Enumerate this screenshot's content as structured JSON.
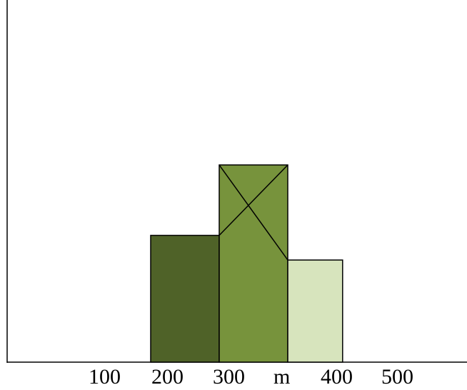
{
  "chart_data": {
    "type": "bar",
    "title": "",
    "xlabel": "",
    "ylabel": "",
    "x_tick_labels": [
      "100",
      "200",
      "300",
      "m",
      "400",
      "500"
    ],
    "bars": [
      {
        "x_start": 200,
        "x_end": 300,
        "value": 180,
        "color": "#4f6228"
      },
      {
        "x_start": 300,
        "x_end": 400,
        "value": 280,
        "color": "#77933c"
      },
      {
        "x_start": 400,
        "x_end": 480,
        "value": 145,
        "color": "#d7e4bd"
      }
    ],
    "annotations": [
      {
        "type": "diagonal-cross",
        "on_bar": 1
      },
      {
        "type": "line",
        "from": {
          "x": 300,
          "y": 180
        },
        "to": {
          "x": 400,
          "y": 145
        },
        "via_bar_top_corners": true
      }
    ],
    "xlim": [
      0,
      640
    ],
    "ylim": [
      0,
      500
    ],
    "grid": false,
    "legend": "none"
  }
}
